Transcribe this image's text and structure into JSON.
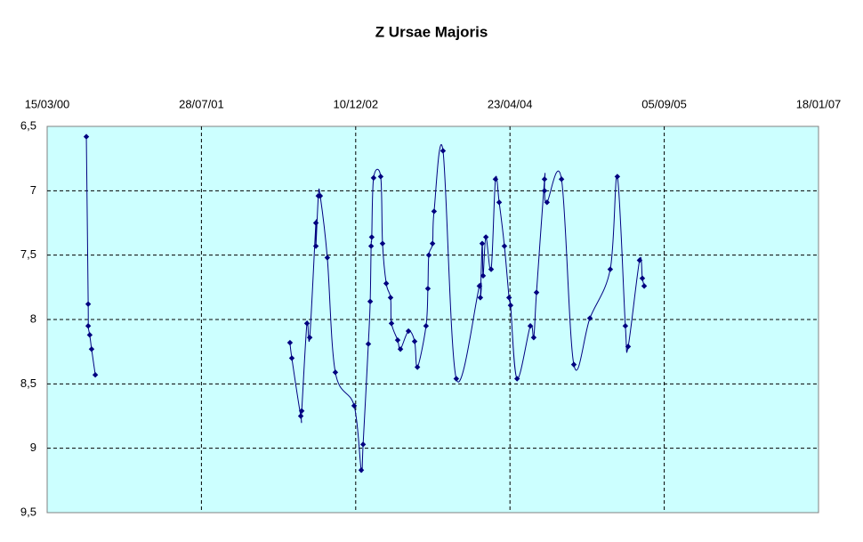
{
  "chart_data": {
    "type": "scatter-line",
    "title": "Z Ursae Majoris",
    "x": [
      36727,
      36733,
      36733,
      36738,
      36744,
      36756,
      null,
      37387,
      37393,
      37422,
      37425,
      37442,
      37451,
      37471,
      37471,
      37479,
      37485,
      37508,
      37534,
      37595,
      37618,
      37624,
      37641,
      37647,
      37650,
      37652,
      37658,
      37681,
      37687,
      37699,
      37713,
      37716,
      37736,
      37745,
      37771,
      37791,
      37800,
      37828,
      37834,
      37837,
      37849,
      37854,
      37883,
      37926,
      38001,
      38004,
      38010,
      38013,
      38022,
      38039,
      38053,
      38065,
      38082,
      38097,
      38102,
      38123,
      38166,
      38177,
      38186,
      38212,
      38212,
      38220,
      38267,
      38307,
      38359,
      38425,
      38448,
      38474,
      38483,
      38520,
      38529,
      38535
    ],
    "values": [
      6.58,
      7.88,
      8.05,
      8.12,
      8.23,
      8.43,
      null,
      8.18,
      8.3,
      8.75,
      8.71,
      8.03,
      8.14,
      7.25,
      7.43,
      7.04,
      7.04,
      7.52,
      8.41,
      8.67,
      9.17,
      8.97,
      8.19,
      7.86,
      7.43,
      7.36,
      6.9,
      6.89,
      7.41,
      7.72,
      7.83,
      8.03,
      8.16,
      8.23,
      8.09,
      8.17,
      8.37,
      8.05,
      7.76,
      7.5,
      7.41,
      7.16,
      6.69,
      8.46,
      7.74,
      7.83,
      7.41,
      7.66,
      7.36,
      7.61,
      6.91,
      7.09,
      7.43,
      7.83,
      7.89,
      8.46,
      8.05,
      8.14,
      7.79,
      6.91,
      7.0,
      7.09,
      6.91,
      8.35,
      7.99,
      7.61,
      6.89,
      8.05,
      8.21,
      7.54,
      7.68,
      7.74
    ],
    "color": "#000080",
    "xlim": [
      36600,
      39100
    ],
    "xticks": [
      {
        "value": 36600,
        "label": "15/03/00"
      },
      {
        "value": 37100,
        "label": "28/07/01"
      },
      {
        "value": 37600,
        "label": "10/12/02"
      },
      {
        "value": 38100,
        "label": "23/04/04"
      },
      {
        "value": 38600,
        "label": "05/09/05"
      },
      {
        "value": 39100,
        "label": "18/01/07"
      }
    ],
    "ylim": [
      6.5,
      9.5
    ],
    "y_inverted": true,
    "yticks": [
      {
        "value": 6.5,
        "label": "6,5"
      },
      7,
      {
        "value": 7.5,
        "label": "7,5"
      },
      8,
      {
        "value": 8.5,
        "label": "8,5"
      },
      9,
      {
        "value": 9.5,
        "label": "9,5"
      }
    ],
    "grid": true,
    "plot_background": "#ccffff"
  }
}
